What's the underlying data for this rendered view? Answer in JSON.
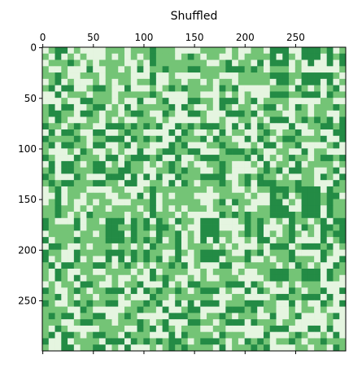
{
  "chart_data": {
    "type": "heatmap",
    "title": "Shuffled",
    "xlabel": "",
    "ylabel": "",
    "rows": 300,
    "cols": 300,
    "xlim": [
      0,
      300
    ],
    "ylim": [
      300,
      0
    ],
    "x_ticks": [
      0,
      50,
      100,
      150,
      200,
      250
    ],
    "x_tick_labels": [
      "0",
      "50",
      "100",
      "150",
      "200",
      "250"
    ],
    "y_ticks": [
      0,
      50,
      100,
      150,
      200,
      250
    ],
    "y_tick_labels": [
      "0",
      "50",
      "100",
      "150",
      "200",
      "250"
    ],
    "x_axis_position": "top",
    "grid": false,
    "colormap": "Greens",
    "values_description_colors": {
      "low": "#e5f5e0",
      "mid": "#74c476",
      "high": "#238b45"
    },
    "pattern": "block structure of rows and columns shuffled"
  }
}
